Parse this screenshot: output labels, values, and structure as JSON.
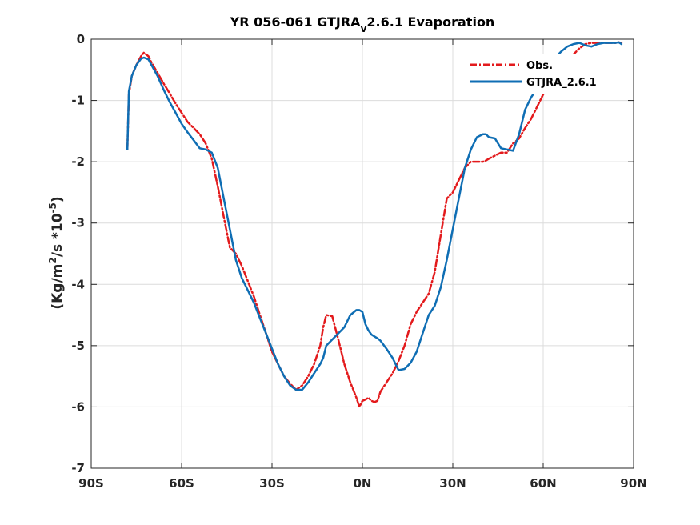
{
  "chart_data": {
    "type": "line",
    "title": {
      "main": "YR 056-061 GTJRA",
      "subscript": "v",
      "rest": "2.6.1 Evaporation"
    },
    "ylabel": {
      "part1": "(Kg/m",
      "sup1": "2",
      "part2": "/s *10",
      "sup2": "-5",
      "part3": ")"
    },
    "xlabel": "",
    "xlim": [
      -90,
      90
    ],
    "ylim": [
      -7,
      0
    ],
    "xticks": [
      -90,
      -60,
      -30,
      0,
      30,
      60,
      90
    ],
    "xtick_labels": [
      "90S",
      "60S",
      "30S",
      "0N",
      "30N",
      "60N",
      "90N"
    ],
    "yticks": [
      -7,
      -6,
      -5,
      -4,
      -3,
      -2,
      -1,
      0
    ],
    "ytick_labels": [
      "-7",
      "-6",
      "-5",
      "-4",
      "-3",
      "-2",
      "-1",
      "0"
    ],
    "grid": true,
    "legend_position": "top-right",
    "series": [
      {
        "name": "Obs.",
        "color": "#e31a1c",
        "style": "dash-dot",
        "x": [
          -78,
          -77.5,
          -76.5,
          -75,
          -73.5,
          -72.5,
          -71,
          -70,
          -68,
          -66,
          -64,
          -62,
          -60,
          -58,
          -56,
          -54,
          -52,
          -50,
          -48,
          -46,
          -44,
          -42,
          -40,
          -38,
          -36,
          -34,
          -32,
          -30,
          -28,
          -26,
          -24,
          -22,
          -20,
          -18,
          -16,
          -14,
          -13,
          -12,
          -10,
          -8,
          -6,
          -4,
          -2,
          -1,
          0,
          1,
          2,
          3,
          4,
          5,
          6,
          8,
          10,
          12,
          14,
          16,
          18,
          20,
          22,
          24,
          26,
          28,
          30,
          32,
          34,
          36,
          38,
          40,
          41,
          42,
          44,
          46,
          48,
          50,
          52,
          54,
          56,
          58,
          60,
          62,
          64,
          66,
          68,
          70,
          72,
          74,
          76,
          78,
          80,
          82,
          84,
          85,
          86
        ],
        "y": [
          -1.8,
          -0.9,
          -0.6,
          -0.42,
          -0.28,
          -0.22,
          -0.28,
          -0.38,
          -0.55,
          -0.72,
          -0.88,
          -1.05,
          -1.2,
          -1.35,
          -1.45,
          -1.55,
          -1.7,
          -1.95,
          -2.4,
          -2.9,
          -3.4,
          -3.5,
          -3.7,
          -3.95,
          -4.2,
          -4.5,
          -4.8,
          -5.1,
          -5.3,
          -5.5,
          -5.62,
          -5.72,
          -5.65,
          -5.5,
          -5.3,
          -5.0,
          -4.7,
          -4.5,
          -4.52,
          -4.9,
          -5.3,
          -5.6,
          -5.85,
          -6.0,
          -5.9,
          -5.88,
          -5.85,
          -5.9,
          -5.92,
          -5.9,
          -5.75,
          -5.6,
          -5.45,
          -5.25,
          -5.0,
          -4.65,
          -4.45,
          -4.3,
          -4.15,
          -3.8,
          -3.2,
          -2.6,
          -2.5,
          -2.3,
          -2.1,
          -2.0,
          -2.0,
          -2.0,
          -1.98,
          -1.95,
          -1.9,
          -1.85,
          -1.85,
          -1.7,
          -1.62,
          -1.45,
          -1.3,
          -1.1,
          -0.9,
          -0.75,
          -0.55,
          -0.45,
          -0.35,
          -0.25,
          -0.15,
          -0.08,
          -0.06,
          -0.06,
          -0.06,
          -0.06,
          -0.06,
          -0.05,
          -0.06
        ]
      },
      {
        "name": "GTJRA_2.6.1",
        "color": "#0f6eb4",
        "style": "solid",
        "x": [
          -78,
          -77.5,
          -76.5,
          -75,
          -73.5,
          -72.5,
          -71,
          -70,
          -68,
          -66,
          -64,
          -62,
          -60,
          -58,
          -56,
          -54,
          -52,
          -50,
          -48,
          -46,
          -44,
          -42,
          -40,
          -38,
          -36,
          -34,
          -32,
          -30,
          -28,
          -26,
          -24,
          -22,
          -20,
          -18,
          -16,
          -14,
          -13,
          -12,
          -10,
          -8,
          -6,
          -4,
          -2,
          -1,
          0,
          1,
          2,
          3,
          4,
          5,
          6,
          8,
          10,
          12,
          14,
          16,
          18,
          20,
          22,
          24,
          26,
          28,
          30,
          32,
          34,
          36,
          38,
          40,
          41,
          42,
          44,
          46,
          48,
          50,
          52,
          54,
          56,
          58,
          60,
          62,
          64,
          66,
          68,
          70,
          72,
          74,
          76,
          78,
          80,
          82,
          84,
          85,
          86
        ],
        "y": [
          -1.8,
          -0.85,
          -0.6,
          -0.42,
          -0.32,
          -0.3,
          -0.33,
          -0.42,
          -0.6,
          -0.82,
          -1.02,
          -1.2,
          -1.38,
          -1.52,
          -1.65,
          -1.78,
          -1.8,
          -1.85,
          -2.1,
          -2.6,
          -3.1,
          -3.6,
          -3.9,
          -4.1,
          -4.3,
          -4.55,
          -4.8,
          -5.05,
          -5.3,
          -5.5,
          -5.65,
          -5.72,
          -5.72,
          -5.6,
          -5.45,
          -5.3,
          -5.2,
          -5.0,
          -4.9,
          -4.8,
          -4.7,
          -4.5,
          -4.42,
          -4.42,
          -4.45,
          -4.65,
          -4.75,
          -4.82,
          -4.85,
          -4.88,
          -4.92,
          -5.05,
          -5.2,
          -5.4,
          -5.38,
          -5.28,
          -5.1,
          -4.8,
          -4.5,
          -4.35,
          -4.05,
          -3.6,
          -3.1,
          -2.6,
          -2.1,
          -1.8,
          -1.6,
          -1.55,
          -1.55,
          -1.6,
          -1.62,
          -1.78,
          -1.8,
          -1.82,
          -1.55,
          -1.15,
          -0.95,
          -0.8,
          -0.6,
          -0.45,
          -0.3,
          -0.2,
          -0.12,
          -0.08,
          -0.06,
          -0.1,
          -0.12,
          -0.08,
          -0.06,
          -0.06,
          -0.06,
          -0.05,
          -0.08
        ]
      }
    ]
  }
}
